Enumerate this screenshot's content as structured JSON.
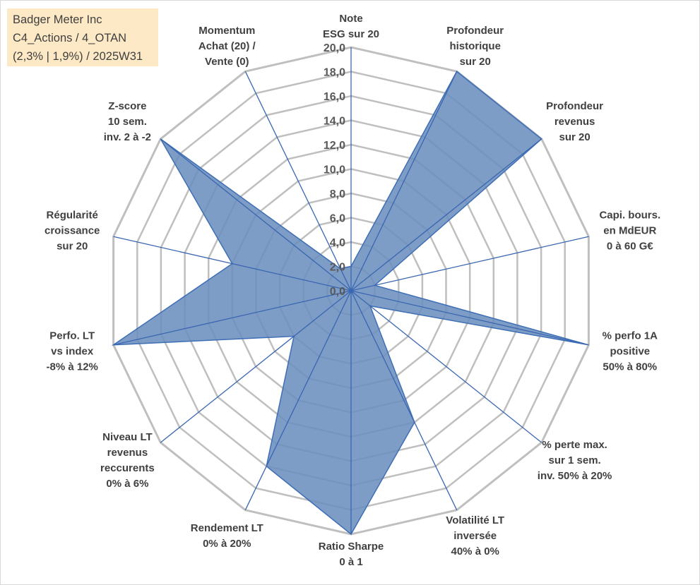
{
  "title_box": {
    "line1": "Badger Meter Inc",
    "line2": "C4_Actions / 4_OTAN",
    "line3": "(2,3% | 1,9%) / 2025W31"
  },
  "chart_data": {
    "type": "radar",
    "rmin": 0,
    "rmax": 20,
    "grid_step": 2,
    "tick_labels": [
      "0,0",
      "2,0",
      "4,0",
      "6,0",
      "8,0",
      "10,0",
      "12,0",
      "14,0",
      "16,0",
      "18,0",
      "20,0"
    ],
    "axes": [
      [
        "Note",
        "ESG sur 20"
      ],
      [
        "Profondeur",
        "historique",
        "sur 20"
      ],
      [
        "Profondeur",
        "revenus",
        "sur 20"
      ],
      [
        "Capi. bours.",
        "en MdEUR",
        "0 à 60 G€"
      ],
      [
        "% perfo 1A",
        "positive",
        "50% à 80%"
      ],
      [
        "% perte max.",
        "sur 1 sem.",
        "inv. 50% à 20%"
      ],
      [
        "Volatilité LT",
        "inversée",
        "40% à 0%"
      ],
      [
        "Ratio Sharpe",
        "0 à 1"
      ],
      [
        "Rendement LT",
        "0% à 20%"
      ],
      [
        "Niveau LT",
        "revenus",
        "reccurents",
        "0% à 6%"
      ],
      [
        "Perfo. LT",
        "vs index",
        "-8% à 12%"
      ],
      [
        "Régularité",
        "croissance",
        "sur 20"
      ],
      [
        "Z-score",
        "10 sem.",
        "inv. 2 à -2"
      ],
      [
        "Momentum",
        "Achat (20) /",
        "Vente (0)"
      ]
    ],
    "values": [
      2.0,
      20.0,
      20.0,
      2.0,
      20.0,
      2.0,
      12.0,
      20.0,
      16.0,
      6.0,
      20.0,
      10.0,
      20.0,
      2.0
    ],
    "grid": true,
    "colors": {
      "fill": "#6b8fbf",
      "fill_opacity": 0.88,
      "outline": "#3e6eb5",
      "spoke": "#3a66b0",
      "grid": "#bfbfbf"
    }
  }
}
